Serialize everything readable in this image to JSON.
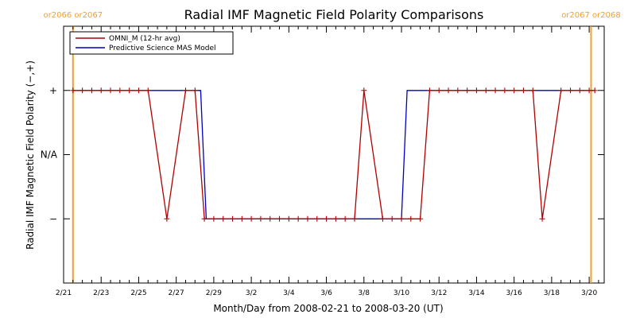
{
  "chart_data": {
    "type": "line",
    "title": "Radial IMF Magnetic Field Polarity Comparisons",
    "xlabel": "Month/Day from 2008-02-21 to 2008-03-20 (UT)",
    "ylabel": "Radial IMF Magnetic Field Polarity (−,+)",
    "x_range_days": [
      0,
      28.8
    ],
    "x_tick_labels": [
      "2/21",
      "2/23",
      "2/25",
      "2/27",
      "2/29",
      "3/2",
      "3/4",
      "3/6",
      "3/8",
      "3/10",
      "3/12",
      "3/14",
      "3/16",
      "3/18",
      "3/20"
    ],
    "y_tick_labels": [
      "+",
      "N/A",
      "−"
    ],
    "y_values_meaning": {
      "1": "+",
      "0": "N/A",
      "-1": "−"
    },
    "ylim": [
      -2,
      2
    ],
    "carrington_markers": [
      {
        "day": 0.5,
        "label": "or2066 or2067"
      },
      {
        "day": 28.1,
        "label": "or2067 or2068"
      }
    ],
    "legend": {
      "placement": "top-left",
      "entries": [
        {
          "name": "OMNI_M (12-hr avg)",
          "color": "#b00000"
        },
        {
          "name": "Predictive Science MAS Model",
          "color": "#0000c0"
        }
      ]
    },
    "series": [
      {
        "name": "OMNI_M (12-hr avg)",
        "color": "#b00000",
        "marker": "+",
        "points": [
          [
            0.5,
            1
          ],
          [
            1.0,
            1
          ],
          [
            1.5,
            1
          ],
          [
            2.0,
            1
          ],
          [
            2.5,
            1
          ],
          [
            3.0,
            1
          ],
          [
            3.5,
            1
          ],
          [
            4.0,
            1
          ],
          [
            4.5,
            1
          ],
          [
            5.5,
            -1
          ],
          [
            6.5,
            1
          ],
          [
            7.0,
            1
          ],
          [
            7.5,
            -1
          ],
          [
            8.0,
            -1
          ],
          [
            8.5,
            -1
          ],
          [
            9.0,
            -1
          ],
          [
            9.5,
            -1
          ],
          [
            10.0,
            -1
          ],
          [
            10.5,
            -1
          ],
          [
            11.0,
            -1
          ],
          [
            11.5,
            -1
          ],
          [
            12.0,
            -1
          ],
          [
            12.5,
            -1
          ],
          [
            13.0,
            -1
          ],
          [
            13.5,
            -1
          ],
          [
            14.0,
            -1
          ],
          [
            14.5,
            -1
          ],
          [
            15.0,
            -1
          ],
          [
            15.5,
            -1
          ],
          [
            16.0,
            1
          ],
          [
            17.0,
            -1
          ],
          [
            17.5,
            -1
          ],
          [
            18.0,
            -1
          ],
          [
            18.5,
            -1
          ],
          [
            19.0,
            -1
          ],
          [
            19.5,
            1
          ],
          [
            20.0,
            1
          ],
          [
            20.5,
            1
          ],
          [
            21.0,
            1
          ],
          [
            21.5,
            1
          ],
          [
            22.0,
            1
          ],
          [
            22.5,
            1
          ],
          [
            23.0,
            1
          ],
          [
            23.5,
            1
          ],
          [
            24.0,
            1
          ],
          [
            24.5,
            1
          ],
          [
            25.0,
            1
          ],
          [
            25.5,
            -1
          ],
          [
            26.5,
            1
          ],
          [
            27.0,
            1
          ],
          [
            27.5,
            1
          ],
          [
            28.0,
            1
          ],
          [
            28.3,
            1
          ]
        ]
      },
      {
        "name": "Predictive Science MAS Model",
        "color": "#0000c0",
        "points": [
          [
            0.5,
            1
          ],
          [
            7.3,
            1
          ],
          [
            7.6,
            -1
          ],
          [
            18.0,
            -1
          ],
          [
            18.3,
            1
          ],
          [
            28.3,
            1
          ]
        ]
      }
    ]
  }
}
